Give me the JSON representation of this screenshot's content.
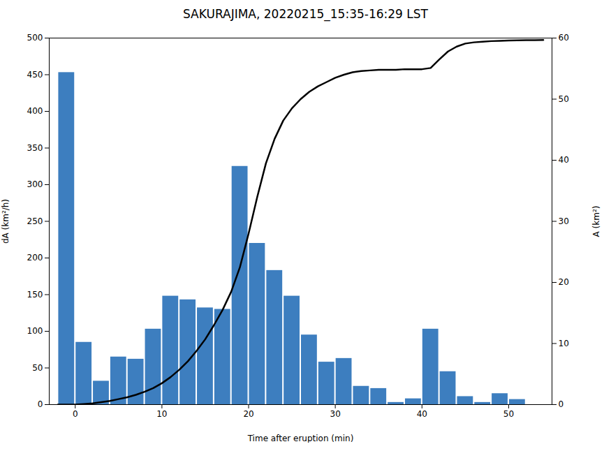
{
  "chart_data": {
    "type": "bar",
    "title": "SAKURAJIMA, 20220215_15:35-16:29 LST",
    "xlabel": "Time after eruption (min)",
    "ylabel": "dA (km²/h)",
    "y2label": "A (km²)",
    "series": [
      {
        "type": "bar",
        "color": "#3d7ebf",
        "x": [
          -1,
          1,
          3,
          5,
          7,
          9,
          11,
          13,
          15,
          17,
          19,
          21,
          23,
          25,
          27,
          29,
          31,
          33,
          35,
          37,
          39,
          41,
          43,
          45,
          47,
          49,
          51,
          53
        ],
        "values": [
          453,
          85,
          32,
          65,
          62,
          103,
          148,
          143,
          132,
          130,
          325,
          220,
          183,
          148,
          95,
          58,
          63,
          25,
          22,
          3,
          8,
          103,
          45,
          11,
          3,
          15,
          7,
          0
        ]
      },
      {
        "type": "line",
        "axis": "y2",
        "color": "#000000",
        "x": [
          -2,
          -1,
          0,
          1,
          2,
          3,
          4,
          5,
          6,
          7,
          8,
          9,
          10,
          11,
          12,
          13,
          14,
          15,
          16,
          17,
          18,
          19,
          20,
          21,
          22,
          23,
          24,
          25,
          26,
          27,
          28,
          29,
          30,
          31,
          32,
          33,
          34,
          35,
          36,
          37,
          38,
          39,
          40,
          41,
          42,
          43,
          44,
          45,
          46,
          47,
          48,
          49,
          50,
          51,
          52,
          53,
          54
        ],
        "values": [
          0,
          0,
          0,
          0.1,
          0.2,
          0.4,
          0.6,
          0.9,
          1.2,
          1.6,
          2.1,
          2.7,
          3.5,
          4.5,
          5.7,
          7.1,
          8.8,
          10.7,
          13.0,
          15.5,
          18.5,
          22.5,
          28.0,
          34.0,
          39.5,
          43.5,
          46.5,
          48.5,
          50.0,
          51.2,
          52.1,
          52.8,
          53.5,
          54.0,
          54.4,
          54.6,
          54.7,
          54.8,
          54.8,
          54.8,
          54.9,
          54.9,
          54.9,
          55.1,
          56.5,
          57.8,
          58.6,
          59.1,
          59.3,
          59.4,
          59.5,
          59.55,
          59.6,
          59.62,
          59.65,
          59.67,
          59.68
        ]
      }
    ],
    "xlim": [
      -3,
      55
    ],
    "xticks": [
      0,
      10,
      20,
      30,
      40,
      50
    ],
    "ylim": [
      0,
      500
    ],
    "yticks": [
      0,
      50,
      100,
      150,
      200,
      250,
      300,
      350,
      400,
      450,
      500
    ],
    "y2lim": [
      0,
      60
    ],
    "y2ticks": [
      0,
      10,
      20,
      30,
      40,
      50,
      60
    ]
  }
}
